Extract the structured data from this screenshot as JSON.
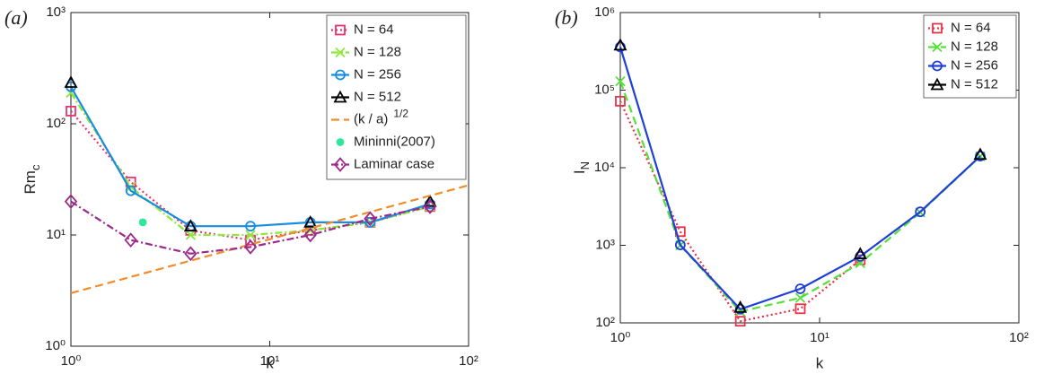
{
  "chart_data": [
    {
      "type": "line",
      "panel_label": "(a)",
      "xlabel": "k",
      "ylabel": "Rm",
      "ylabel_sub": "c",
      "xscale": "log",
      "yscale": "log",
      "xlim": [
        1,
        100
      ],
      "ylim": [
        1,
        1000
      ],
      "xticks": [
        {
          "value": 1,
          "label": "10⁰"
        },
        {
          "value": 10,
          "label": "10¹"
        },
        {
          "value": 100,
          "label": "10²"
        }
      ],
      "yticks": [
        {
          "value": 1,
          "label": "10⁰"
        },
        {
          "value": 10,
          "label": "10¹"
        },
        {
          "value": 100,
          "label": "10²"
        },
        {
          "value": 1000,
          "label": "10³"
        }
      ],
      "legend": "upper right",
      "series": [
        {
          "name": "N = 64",
          "color": "#e8336e",
          "marker": "square",
          "linestyle": "dotted",
          "x": [
            1,
            2,
            4,
            8,
            16,
            32,
            64
          ],
          "values": [
            130,
            30,
            11,
            9,
            11,
            13,
            18
          ]
        },
        {
          "name": "N = 128",
          "color": "#8ee83a",
          "marker": "cross",
          "linestyle": "dashdot",
          "x": [
            1,
            2,
            4,
            8,
            16,
            32,
            64
          ],
          "values": [
            190,
            27,
            10,
            10,
            11,
            13,
            18
          ]
        },
        {
          "name": "N = 256",
          "color": "#1a8ce0",
          "marker": "circle",
          "linestyle": "solid",
          "x": [
            1,
            2,
            4,
            8,
            16,
            32,
            64
          ],
          "values": [
            215,
            25,
            12,
            12,
            13,
            13,
            19
          ]
        },
        {
          "name": "N = 512",
          "color": "#000000",
          "marker": "triangle",
          "linestyle": "solid",
          "x": [
            1,
            2,
            4,
            8,
            16,
            32,
            64
          ],
          "values": [
            235,
            null,
            12,
            null,
            13,
            null,
            20
          ]
        },
        {
          "name": "(k / a)",
          "name_sup": "1/2",
          "color": "#f28c28",
          "marker": "none",
          "linestyle": "dashed",
          "x": [
            1,
            100
          ],
          "values": [
            3,
            28
          ]
        },
        {
          "name": "Mininni(2007)",
          "color": "#2ee89a",
          "marker": "dot",
          "linestyle": "none",
          "x": [
            2.3
          ],
          "values": [
            13
          ]
        },
        {
          "name": "Laminar case",
          "color": "#9b2a8c",
          "marker": "diamond",
          "linestyle": "dashdot",
          "x": [
            1,
            2,
            4,
            8,
            16,
            32,
            64
          ],
          "values": [
            20,
            9,
            6.8,
            7.8,
            10,
            14,
            18
          ]
        }
      ]
    },
    {
      "type": "line",
      "panel_label": "(b)",
      "xlabel": "k",
      "ylabel": "I",
      "ylabel_sub": "N",
      "xscale": "log",
      "yscale": "log",
      "xlim": [
        1,
        100
      ],
      "ylim": [
        100,
        1000000
      ],
      "xticks": [
        {
          "value": 1,
          "label": "10⁰"
        },
        {
          "value": 10,
          "label": "10¹"
        },
        {
          "value": 100,
          "label": "10²"
        }
      ],
      "yticks": [
        {
          "value": 100,
          "label": "10²"
        },
        {
          "value": 1000,
          "label": "10³"
        },
        {
          "value": 10000,
          "label": "10⁴"
        },
        {
          "value": 100000,
          "label": "10⁵"
        },
        {
          "value": 1000000,
          "label": "10⁶"
        }
      ],
      "legend": "upper right",
      "series": [
        {
          "name": "N = 64",
          "color": "#e8334a",
          "marker": "square",
          "linestyle": "dotted",
          "x": [
            1,
            2,
            4,
            8,
            16,
            32,
            64
          ],
          "values": [
            72000,
            1500,
            105,
            152,
            650,
            null,
            null
          ]
        },
        {
          "name": "N = 128",
          "color": "#55e03a",
          "marker": "cross",
          "linestyle": "dashed",
          "x": [
            1,
            2,
            4,
            8,
            16,
            32,
            64
          ],
          "values": [
            130000,
            1000,
            140,
            210,
            590,
            2650,
            14000
          ]
        },
        {
          "name": "N = 256",
          "color": "#1f3fd6",
          "marker": "circle",
          "linestyle": "solid",
          "x": [
            1,
            2,
            4,
            8,
            16,
            32,
            64
          ],
          "values": [
            360000,
            1010,
            150,
            275,
            720,
            2700,
            14100
          ]
        },
        {
          "name": "N = 512",
          "color": "#000000",
          "marker": "triangle",
          "linestyle": "solid",
          "x": [
            1,
            2,
            4,
            8,
            16,
            32,
            64
          ],
          "values": [
            380000,
            null,
            158,
            null,
            775,
            null,
            14800
          ]
        }
      ]
    }
  ]
}
